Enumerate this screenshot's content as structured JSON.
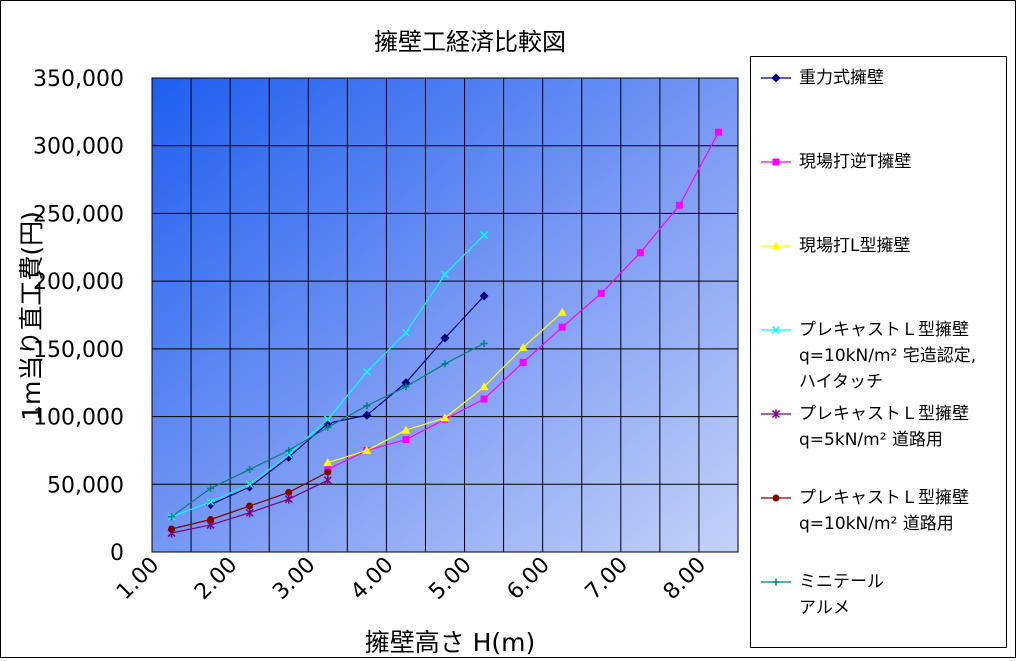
{
  "chart_data": {
    "type": "line",
    "title": "擁壁工経済比較図",
    "xlabel": "擁壁高さ H(m)",
    "ylabel": "1m当り直工費(円)",
    "xlim": [
      1.0,
      8.5
    ],
    "ylim": [
      0,
      350000
    ],
    "xticks": [
      "1.00",
      "2.00",
      "3.00",
      "4.00",
      "5.00",
      "6.00",
      "7.00",
      "8.00"
    ],
    "yticks": [
      "0",
      "50,000",
      "100,000",
      "150,000",
      "200,000",
      "250,000",
      "300,000",
      "350,000"
    ],
    "grid": true,
    "legend_position": "right",
    "series": [
      {
        "name": "重力式擁壁",
        "color": "#000080",
        "marker": "diamond",
        "x": [
          1.75,
          2.25,
          2.75,
          3.25,
          3.75,
          4.25,
          4.75,
          5.25
        ],
        "y": [
          35000,
          48000,
          70000,
          95000,
          101000,
          125000,
          158000,
          189000
        ]
      },
      {
        "name": "現場打逆T擁壁",
        "color": "#FF00FF",
        "marker": "square",
        "x": [
          3.25,
          3.75,
          4.25,
          4.75,
          5.25,
          5.75,
          6.25,
          6.75,
          7.25,
          7.75,
          8.25
        ],
        "y": [
          61000,
          75000,
          83000,
          98000,
          113000,
          140000,
          166000,
          191000,
          221000,
          256000,
          310000
        ]
      },
      {
        "name": "現場打L型擁壁",
        "color": "#FFFF00",
        "marker": "triangle",
        "x": [
          3.25,
          3.75,
          4.25,
          4.75,
          5.25,
          5.75,
          6.25
        ],
        "y": [
          66000,
          75000,
          90000,
          99000,
          122000,
          151000,
          177000
        ]
      },
      {
        "name": "プレキャストＬ型擁壁\nq=10kN/m² 宅造認定,\nハイタッチ",
        "color": "#00FFFF",
        "marker": "x",
        "x": [
          1.25,
          1.75,
          2.25,
          2.75,
          3.25,
          3.75,
          4.25,
          4.75,
          5.25
        ],
        "y": [
          26000,
          37000,
          50000,
          72000,
          98000,
          133000,
          162000,
          205000,
          234000
        ]
      },
      {
        "name": "プレキャストＬ型擁壁\nq=5kN/m² 道路用",
        "color": "#800080",
        "marker": "star",
        "x": [
          1.25,
          1.75,
          2.25,
          2.75,
          3.25
        ],
        "y": [
          14000,
          20000,
          29000,
          39000,
          53000
        ]
      },
      {
        "name": "プレキャストＬ型擁壁\nq=10kN/m² 道路用",
        "color": "#800000",
        "marker": "circle",
        "x": [
          1.25,
          1.75,
          2.25,
          2.75,
          3.25
        ],
        "y": [
          17000,
          24000,
          34000,
          44000,
          59000
        ]
      },
      {
        "name": "ミニテール\nアルメ",
        "color": "#008080",
        "marker": "plus",
        "x": [
          1.25,
          1.75,
          2.25,
          2.75,
          3.25,
          3.75,
          4.25,
          4.75,
          5.25
        ],
        "y": [
          26000,
          47000,
          61000,
          75000,
          92000,
          108000,
          122000,
          139000,
          154000
        ]
      }
    ]
  }
}
